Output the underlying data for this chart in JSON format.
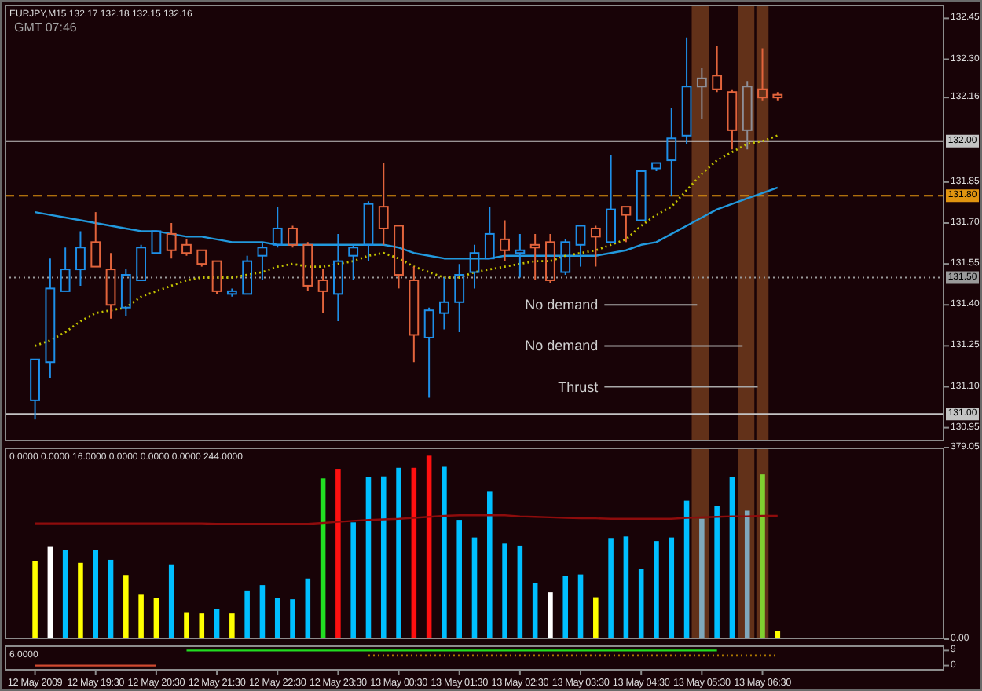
{
  "chart_data": [
    {
      "type": "candlestick",
      "title": "EURJPY,M15 132.17 132.18 132.15 132.16",
      "subtitle": "GMT 07:46",
      "annotations": [
        {
          "text": "No demand",
          "x": "2009-05-13T05:30",
          "y": 131.4
        },
        {
          "text": "No demand",
          "x": "2009-05-13T06:15",
          "y": 131.25
        },
        {
          "text": "Thrust",
          "x": "2009-05-13T06:30",
          "y": 131.1
        }
      ],
      "x": [
        "2009-05-12T18:30",
        "2009-05-12T18:45",
        "2009-05-12T19:00",
        "2009-05-12T19:15",
        "2009-05-12T19:30",
        "2009-05-12T19:45",
        "2009-05-12T20:00",
        "2009-05-12T20:15",
        "2009-05-12T20:30",
        "2009-05-12T20:45",
        "2009-05-12T21:00",
        "2009-05-12T21:15",
        "2009-05-12T21:30",
        "2009-05-12T21:45",
        "2009-05-12T22:00",
        "2009-05-12T22:15",
        "2009-05-12T22:30",
        "2009-05-12T22:45",
        "2009-05-12T23:00",
        "2009-05-12T23:15",
        "2009-05-12T23:30",
        "2009-05-12T23:45",
        "2009-05-13T00:00",
        "2009-05-13T00:15",
        "2009-05-13T00:30",
        "2009-05-13T00:45",
        "2009-05-13T01:00",
        "2009-05-13T01:15",
        "2009-05-13T01:30",
        "2009-05-13T01:45",
        "2009-05-13T02:00",
        "2009-05-13T02:15",
        "2009-05-13T02:30",
        "2009-05-13T02:45",
        "2009-05-13T03:00",
        "2009-05-13T03:15",
        "2009-05-13T03:30",
        "2009-05-13T03:45",
        "2009-05-13T04:00",
        "2009-05-13T04:15",
        "2009-05-13T04:30",
        "2009-05-13T04:45",
        "2009-05-13T05:00",
        "2009-05-13T05:15",
        "2009-05-13T05:30",
        "2009-05-13T05:45",
        "2009-05-13T06:00",
        "2009-05-13T06:15",
        "2009-05-13T06:30",
        "2009-05-13T06:45"
      ],
      "ohlc": [
        [
          131.05,
          131.2,
          130.98,
          131.2
        ],
        [
          131.19,
          131.57,
          131.13,
          131.46
        ],
        [
          131.45,
          131.61,
          131.45,
          131.53
        ],
        [
          131.53,
          131.67,
          131.47,
          131.61
        ],
        [
          131.63,
          131.74,
          131.54,
          131.54
        ],
        [
          131.53,
          131.59,
          131.35,
          131.4
        ],
        [
          131.39,
          131.53,
          131.36,
          131.51
        ],
        [
          131.49,
          131.62,
          131.49,
          131.61
        ],
        [
          131.59,
          131.67,
          131.59,
          131.67
        ],
        [
          131.66,
          131.7,
          131.57,
          131.6
        ],
        [
          131.62,
          131.64,
          131.58,
          131.59
        ],
        [
          131.6,
          131.6,
          131.54,
          131.55
        ],
        [
          131.56,
          131.56,
          131.44,
          131.45
        ],
        [
          131.44,
          131.46,
          131.43,
          131.45
        ],
        [
          131.44,
          131.58,
          131.44,
          131.56
        ],
        [
          131.58,
          131.63,
          131.49,
          131.61
        ],
        [
          131.62,
          131.76,
          131.61,
          131.68
        ],
        [
          131.68,
          131.69,
          131.61,
          131.62
        ],
        [
          131.62,
          131.63,
          131.45,
          131.47
        ],
        [
          131.49,
          131.53,
          131.37,
          131.45
        ],
        [
          131.44,
          131.66,
          131.34,
          131.56
        ],
        [
          131.58,
          131.62,
          131.49,
          131.61
        ],
        [
          131.62,
          131.78,
          131.56,
          131.77
        ],
        [
          131.76,
          131.92,
          131.62,
          131.68
        ],
        [
          131.69,
          131.69,
          131.46,
          131.51
        ],
        [
          131.49,
          131.54,
          131.19,
          131.29
        ],
        [
          131.28,
          131.39,
          131.06,
          131.38
        ],
        [
          131.37,
          131.5,
          131.31,
          131.41
        ],
        [
          131.41,
          131.55,
          131.3,
          131.51
        ],
        [
          131.52,
          131.62,
          131.46,
          131.59
        ],
        [
          131.57,
          131.76,
          131.57,
          131.66
        ],
        [
          131.64,
          131.71,
          131.56,
          131.6
        ],
        [
          131.59,
          131.66,
          131.5,
          131.6
        ],
        [
          131.62,
          131.66,
          131.49,
          131.61
        ],
        [
          131.63,
          131.66,
          131.48,
          131.49
        ],
        [
          131.52,
          131.64,
          131.51,
          131.63
        ],
        [
          131.62,
          131.69,
          131.54,
          131.69
        ],
        [
          131.68,
          131.69,
          131.54,
          131.65
        ],
        [
          131.63,
          131.95,
          131.63,
          131.75
        ],
        [
          131.76,
          131.76,
          131.63,
          131.73
        ],
        [
          131.71,
          131.89,
          131.71,
          131.89
        ],
        [
          131.9,
          131.92,
          131.89,
          131.92
        ],
        [
          131.93,
          132.12,
          131.8,
          132.01
        ],
        [
          132.02,
          132.38,
          131.99,
          132.2
        ],
        [
          132.2,
          132.27,
          132.08,
          132.23
        ],
        [
          132.24,
          132.35,
          132.18,
          132.19
        ],
        [
          132.18,
          132.19,
          131.97,
          132.04
        ],
        [
          132.04,
          132.22,
          131.97,
          132.2
        ],
        [
          132.19,
          132.34,
          132.15,
          132.16
        ],
        [
          132.17,
          132.18,
          132.15,
          132.16
        ]
      ],
      "colors": [
        "#1e8fe8",
        "#1e8fe8",
        "#1e8fe8",
        "#1e8fe8",
        "#e2643c",
        "#e2643c",
        "#1e8fe8",
        "#1e8fe8",
        "#1e8fe8",
        "#e2643c",
        "#e2643c",
        "#e2643c",
        "#e2643c",
        "#1e8fe8",
        "#1e8fe8",
        "#1e8fe8",
        "#1e8fe8",
        "#e2643c",
        "#e2643c",
        "#e2643c",
        "#1e8fe8",
        "#1e8fe8",
        "#1e8fe8",
        "#e2643c",
        "#e2643c",
        "#e2643c",
        "#1e8fe8",
        "#1e8fe8",
        "#1e8fe8",
        "#1e8fe8",
        "#1e8fe8",
        "#e2643c",
        "#1e8fe8",
        "#e2643c",
        "#e2643c",
        "#1e8fe8",
        "#1e8fe8",
        "#e2643c",
        "#1e8fe8",
        "#e2643c",
        "#1e8fe8",
        "#1e8fe8",
        "#1e8fe8",
        "#1e8fe8",
        "#8e8e96",
        "#e2643c",
        "#e2643c",
        "#8e8e96",
        "#e2643c",
        "#e2643c"
      ],
      "series": [
        {
          "type": "line",
          "color": "#2299dd",
          "values": [
            131.74,
            131.73,
            131.72,
            131.71,
            131.7,
            131.69,
            131.68,
            131.67,
            131.67,
            131.66,
            131.65,
            131.65,
            131.64,
            131.63,
            131.63,
            131.63,
            131.62,
            131.62,
            131.62,
            131.62,
            131.62,
            131.62,
            131.62,
            131.62,
            131.61,
            131.59,
            131.58,
            131.57,
            131.57,
            131.57,
            131.57,
            131.58,
            131.58,
            131.58,
            131.58,
            131.58,
            131.58,
            131.58,
            131.59,
            131.6,
            131.62,
            131.63,
            131.66,
            131.69,
            131.72,
            131.75,
            131.77,
            131.79,
            131.81,
            131.83
          ]
        },
        {
          "type": "line",
          "color": "#c4c400",
          "line_style": "dotted",
          "values": [
            131.25,
            131.27,
            131.3,
            131.34,
            131.37,
            131.38,
            131.39,
            131.43,
            131.45,
            131.47,
            131.49,
            131.5,
            131.5,
            131.5,
            131.51,
            131.52,
            131.54,
            131.55,
            131.54,
            131.54,
            131.55,
            131.56,
            131.58,
            131.59,
            131.57,
            131.54,
            131.52,
            131.5,
            131.5,
            131.52,
            131.53,
            131.54,
            131.55,
            131.56,
            131.56,
            131.58,
            131.59,
            131.6,
            131.62,
            131.64,
            131.69,
            131.73,
            131.76,
            131.82,
            131.88,
            131.93,
            131.96,
            131.99,
            132.0,
            132.02
          ]
        }
      ],
      "xlim": [
        "2009-05-12T18:00",
        "2009-05-13T09:30"
      ],
      "ylim": [
        130.9,
        132.5
      ],
      "yticks": [
        130.95,
        {
          "value": 131.1,
          "label": "131.10"
        },
        131.25,
        {
          "value": 131.4,
          "label": "131.40"
        },
        131.55,
        {
          "value": 131.7,
          "label": "131.70"
        },
        131.85,
        132.16,
        {
          "value": 132.3,
          "label": "132.30"
        },
        132.45
      ],
      "ref_lines": [
        {
          "axis": "y",
          "value": 132,
          "label": "132.00",
          "color": "#c4c4c4",
          "line_style": "solid"
        },
        {
          "axis": "y",
          "value": 131.8,
          "label": "131.80",
          "color": "#e09410",
          "line_style": "dashed"
        },
        {
          "axis": "y",
          "value": 131.5,
          "label": "131.50",
          "color": "#9a9a9a",
          "line_style": "dotted"
        },
        {
          "axis": "y",
          "value": 131,
          "label": "131.00",
          "color": "#c4c4c4",
          "line_style": "solid"
        }
      ],
      "bands": [
        {
          "axis": "x",
          "from": "2009-05-13T05:20",
          "to": "2009-05-13T05:37",
          "color": "#6a361c"
        },
        {
          "axis": "x",
          "from": "2009-05-13T06:06",
          "to": "2009-05-13T06:22",
          "color": "#6a361c"
        },
        {
          "axis": "x",
          "from": "2009-05-13T06:24",
          "to": "2009-05-13T06:36",
          "color": "#6a361c"
        }
      ],
      "tick_labels": "y"
    },
    {
      "type": "bar",
      "title": "0.0000 0.0000 16.0000 0.0000 0.0000 0.0000 244.0000",
      "x": [
        "2009-05-12T18:30",
        "2009-05-12T18:45",
        "2009-05-12T19:00",
        "2009-05-12T19:15",
        "2009-05-12T19:30",
        "2009-05-12T19:45",
        "2009-05-12T20:00",
        "2009-05-12T20:15",
        "2009-05-12T20:30",
        "2009-05-12T20:45",
        "2009-05-12T21:00",
        "2009-05-12T21:15",
        "2009-05-12T21:30",
        "2009-05-12T21:45",
        "2009-05-12T22:00",
        "2009-05-12T22:15",
        "2009-05-12T22:30",
        "2009-05-12T22:45",
        "2009-05-12T23:00",
        "2009-05-12T23:15",
        "2009-05-12T23:30",
        "2009-05-12T23:45",
        "2009-05-13T00:00",
        "2009-05-13T00:15",
        "2009-05-13T00:30",
        "2009-05-13T00:45",
        "2009-05-13T01:00",
        "2009-05-13T01:15",
        "2009-05-13T01:30",
        "2009-05-13T01:45",
        "2009-05-13T02:00",
        "2009-05-13T02:15",
        "2009-05-13T02:30",
        "2009-05-13T02:45",
        "2009-05-13T03:00",
        "2009-05-13T03:15",
        "2009-05-13T03:30",
        "2009-05-13T03:45",
        "2009-05-13T04:00",
        "2009-05-13T04:15",
        "2009-05-13T04:30",
        "2009-05-13T04:45",
        "2009-05-13T05:00",
        "2009-05-13T05:15",
        "2009-05-13T05:30",
        "2009-05-13T05:45",
        "2009-05-13T06:00",
        "2009-05-13T06:15",
        "2009-05-13T06:30",
        "2009-05-13T06:45"
      ],
      "series": [
        {
          "values": [
            155,
            184,
            176,
            151,
            176,
            157,
            127,
            88,
            81,
            148,
            52,
            51,
            60,
            51,
            95,
            107,
            81,
            79,
            120,
            318,
            337,
            231,
            321,
            322,
            339,
            339,
            363,
            341,
            236,
            201,
            293,
            189,
            185,
            111,
            93,
            125,
            128,
            83,
            200,
            203,
            139,
            194,
            201,
            274,
            238,
            263,
            321,
            254,
            326,
            16
          ],
          "colors": [
            "#ffff00",
            "#ffffff",
            "#00bfff",
            "#ffff00",
            "#00bfff",
            "#00bfff",
            "#ffff00",
            "#ffff00",
            "#ffff00",
            "#00bfff",
            "#ffff00",
            "#ffff00",
            "#00bfff",
            "#ffff00",
            "#00bfff",
            "#00bfff",
            "#00bfff",
            "#00bfff",
            "#00bfff",
            "#22e022",
            "#ff1010",
            "#00bfff",
            "#00bfff",
            "#00bfff",
            "#00bfff",
            "#ff1010",
            "#ff1010",
            "#00bfff",
            "#00bfff",
            "#00bfff",
            "#00bfff",
            "#00bfff",
            "#00bfff",
            "#00bfff",
            "#ffffff",
            "#00bfff",
            "#00bfff",
            "#ffff00",
            "#00bfff",
            "#00bfff",
            "#00bfff",
            "#00bfff",
            "#00bfff",
            "#00bfff",
            "#7fa8bc",
            "#00bfff",
            "#00bfff",
            "#7fa8bc",
            "#80d030",
            "#ffff00"
          ]
        },
        {
          "type": "line",
          "color": "#8e0c0c",
          "values": [
            229,
            229,
            229,
            229,
            229,
            229,
            229,
            229,
            229,
            229,
            229,
            229,
            228,
            228,
            228,
            228,
            228,
            228,
            228,
            230,
            232,
            234,
            236,
            237,
            238,
            240,
            242,
            244,
            245,
            245,
            245,
            245,
            243,
            242,
            241,
            240,
            239,
            239,
            238,
            238,
            238,
            238,
            238,
            240,
            241,
            242,
            243,
            243,
            244,
            244
          ]
        }
      ],
      "xlim": [
        "2009-05-12T18:00",
        "2009-05-13T09:30"
      ],
      "ylim": [
        0,
        379.05
      ],
      "yticks": [
        {
          "value": 0,
          "label": "0.00"
        },
        379.05
      ],
      "bands": [
        {
          "axis": "x",
          "from": "2009-05-13T05:20",
          "to": "2009-05-13T05:37",
          "color": "#6a361c"
        },
        {
          "axis": "x",
          "from": "2009-05-13T06:06",
          "to": "2009-05-13T06:22",
          "color": "#6a361c"
        },
        {
          "axis": "x",
          "from": "2009-05-13T06:24",
          "to": "2009-05-13T06:36",
          "color": "#6a361c"
        }
      ],
      "tick_labels": "y"
    },
    {
      "type": "line",
      "title": "6.0000",
      "x": [
        "2009-05-12T18:30",
        "2009-05-12T18:45",
        "2009-05-12T19:00",
        "2009-05-12T19:15",
        "2009-05-12T19:30",
        "2009-05-12T19:45",
        "2009-05-12T20:00",
        "2009-05-12T20:15",
        "2009-05-12T20:30",
        "2009-05-12T20:45",
        "2009-05-12T21:00",
        "2009-05-12T21:15",
        "2009-05-12T21:30",
        "2009-05-12T21:45",
        "2009-05-12T22:00",
        "2009-05-12T22:15",
        "2009-05-12T22:30",
        "2009-05-12T22:45",
        "2009-05-12T23:00",
        "2009-05-12T23:15",
        "2009-05-12T23:30",
        "2009-05-12T23:45",
        "2009-05-13T00:00",
        "2009-05-13T00:15",
        "2009-05-13T00:30",
        "2009-05-13T00:45",
        "2009-05-13T01:00",
        "2009-05-13T01:15",
        "2009-05-13T01:30",
        "2009-05-13T01:45",
        "2009-05-13T02:00",
        "2009-05-13T02:15",
        "2009-05-13T02:30",
        "2009-05-13T02:45",
        "2009-05-13T03:00",
        "2009-05-13T03:15",
        "2009-05-13T03:30",
        "2009-05-13T03:45",
        "2009-05-13T04:00",
        "2009-05-13T04:15",
        "2009-05-13T04:30",
        "2009-05-13T04:45",
        "2009-05-13T05:00",
        "2009-05-13T05:15",
        "2009-05-13T05:30",
        "2009-05-13T05:45",
        "2009-05-13T06:00",
        "2009-05-13T06:15",
        "2009-05-13T06:30",
        "2009-05-13T06:45"
      ],
      "series": [
        {
          "color": "#d04a30",
          "values": [
            0,
            0,
            0,
            0,
            0,
            0,
            0,
            0,
            0,
            null,
            null,
            null,
            null,
            null,
            null,
            null,
            null,
            null,
            null,
            null,
            null,
            null,
            null,
            null,
            null,
            null,
            null,
            null,
            null,
            null,
            null,
            null,
            null,
            null,
            null,
            null,
            null,
            null,
            null,
            null,
            null,
            null,
            null,
            null,
            null,
            null,
            null,
            null,
            null,
            null
          ]
        },
        {
          "color": "#22dd22",
          "values": [
            null,
            null,
            null,
            null,
            null,
            null,
            null,
            null,
            null,
            null,
            9,
            9,
            9,
            9,
            9,
            9,
            9,
            9,
            9,
            9,
            9,
            9,
            9,
            9,
            9,
            9,
            9,
            9,
            9,
            9,
            9,
            9,
            9,
            9,
            9,
            9,
            9,
            9,
            9,
            9,
            9,
            9,
            9,
            9,
            9,
            9,
            null,
            null,
            null,
            null
          ]
        },
        {
          "color": "#b07a00",
          "line_style": "dotted",
          "values": [
            null,
            null,
            null,
            null,
            null,
            null,
            null,
            null,
            null,
            null,
            null,
            null,
            null,
            null,
            null,
            null,
            null,
            null,
            null,
            null,
            null,
            null,
            6,
            6,
            6,
            6,
            6,
            6,
            6,
            6,
            6,
            6,
            6,
            6,
            6,
            6,
            6,
            6,
            6,
            6,
            6,
            6,
            6,
            6,
            6,
            6,
            6,
            6,
            6,
            6
          ]
        }
      ],
      "xlim": [
        "2009-05-12T18:00",
        "2009-05-13T09:30"
      ],
      "ylim": [
        -3,
        12
      ],
      "yticks": [
        0,
        9
      ],
      "xticks": [
        {
          "value": "2009-05-12T18:30",
          "label": "12 May 2009"
        },
        {
          "value": "2009-05-12T19:30",
          "label": "12 May 19:30"
        },
        {
          "value": "2009-05-12T20:30",
          "label": "12 May 20:30"
        },
        {
          "value": "2009-05-12T21:30",
          "label": "12 May 21:30"
        },
        {
          "value": "2009-05-12T22:30",
          "label": "12 May 22:30"
        },
        {
          "value": "2009-05-12T23:30",
          "label": "12 May 23:30"
        },
        {
          "value": "2009-05-13T00:30",
          "label": "13 May 00:30"
        },
        {
          "value": "2009-05-13T01:30",
          "label": "13 May 01:30"
        },
        {
          "value": "2009-05-13T02:30",
          "label": "13 May 02:30"
        },
        {
          "value": "2009-05-13T03:30",
          "label": "13 May 03:30"
        },
        {
          "value": "2009-05-13T04:30",
          "label": "13 May 04:30"
        },
        {
          "value": "2009-05-13T05:30",
          "label": "13 May 05:30"
        },
        {
          "value": "2009-05-13T06:30",
          "label": "13 May 06:30"
        }
      ]
    }
  ]
}
